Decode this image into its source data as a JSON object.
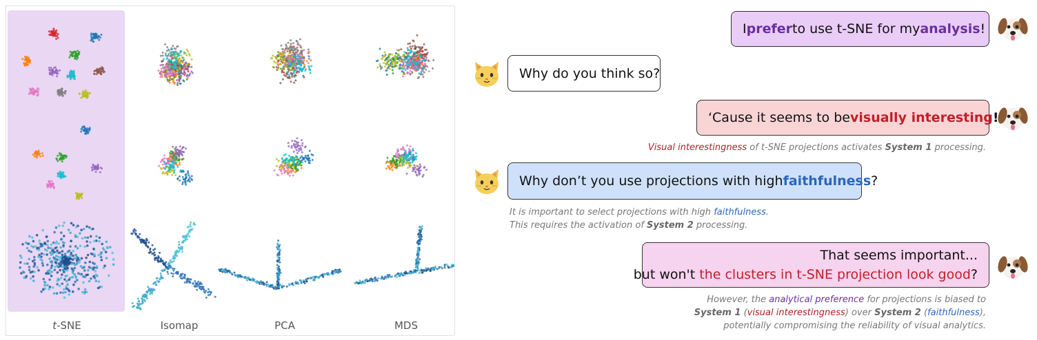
{
  "methods": [
    "t-SNE",
    "Isomap",
    "PCA",
    "MDS"
  ],
  "cluster_colors": [
    "#d62728",
    "#1f77b4",
    "#ff7f0e",
    "#2ca02c",
    "#9467bd",
    "#8c564b",
    "#e377c2",
    "#7f7f7f",
    "#bcbd22",
    "#17becf"
  ],
  "dialog": {
    "m1": {
      "pre": "I ",
      "hl1": "prefer",
      "mid": " to use t-SNE for my ",
      "hl2": "analysis",
      "post": " !"
    },
    "m2": {
      "text": "Why do you think so?"
    },
    "m3": {
      "pre": "‘Cause it seems to be ",
      "hl": "visually interesting",
      "post": "!!"
    },
    "n1": {
      "hl": "Visual interestingness",
      "mid": " of t-SNE projections activates ",
      "bold": "System 1",
      "post": " processing."
    },
    "m4": {
      "pre": "Why don’t you use projections with high ",
      "hl": "faithfulness",
      "post": "?"
    },
    "n2": {
      "l1_pre": "It is important to select projections with high ",
      "l1_hl": "faithfulness",
      "l1_post": ".",
      "l2_pre": "This requires the activation of ",
      "l2_bold": "System 2",
      "l2_post": " processing."
    },
    "m5": {
      "line1": "That seems important...",
      "l2_pre": "but won't ",
      "l2_hl": "the clusters in t-SNE projection look good",
      "l2_post": "?"
    },
    "n3": {
      "l1_pre": "However, the ",
      "l1_hl": "analytical preference",
      "l1_post": " for projections is biased to",
      "l2_b1": "System 1",
      "l2_open": " (",
      "l2_red": "visual interestingness",
      "l2_mid": ") over ",
      "l2_b2": "System 2",
      "l2_open2": " (",
      "l2_blue": "faithfulness",
      "l2_close": "),",
      "l3": "potentially compromising the reliability of visual analytics."
    }
  },
  "speakers": {
    "dog": "dog-icon",
    "cat": "cat-icon"
  }
}
